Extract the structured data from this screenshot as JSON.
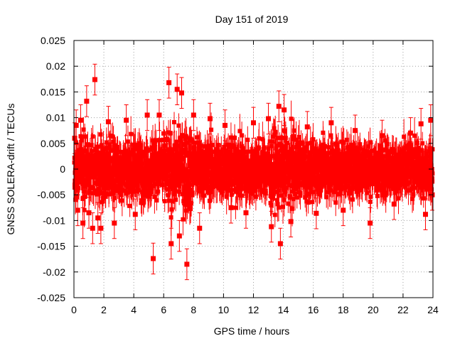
{
  "chart_data": {
    "type": "scatter",
    "title": "Day 151 of 2019",
    "xlabel": "GPS time / hours",
    "ylabel": "GNSS SOLERA-drift / TECUs",
    "xlim": [
      0,
      24
    ],
    "ylim": [
      -0.025,
      0.025
    ],
    "x_ticks": [
      "0",
      "2",
      "4",
      "6",
      "8",
      "10",
      "12",
      "14",
      "16",
      "18",
      "20",
      "22",
      "24"
    ],
    "y_ticks": [
      "-0.025",
      "-0.02",
      "-0.015",
      "-0.01",
      "-0.005",
      "0",
      "0.005",
      "0.01",
      "0.015",
      "0.02",
      "0.025"
    ],
    "grid": true,
    "legend": "none",
    "marker": "square",
    "error_bars": true,
    "color": "#ff0000",
    "points": [
      {
        "x": 0.05,
        "y": 0.006,
        "err": 0.003
      },
      {
        "x": 0.15,
        "y": 0.0085,
        "err": 0.003
      },
      {
        "x": 0.25,
        "y": -0.008,
        "err": 0.003
      },
      {
        "x": 0.45,
        "y": 0.0095,
        "err": 0.003
      },
      {
        "x": 0.6,
        "y": -0.0105,
        "err": 0.003
      },
      {
        "x": 0.85,
        "y": 0.0132,
        "err": 0.003
      },
      {
        "x": 1.0,
        "y": -0.0085,
        "err": 0.003
      },
      {
        "x": 1.25,
        "y": -0.0115,
        "err": 0.003
      },
      {
        "x": 1.4,
        "y": 0.0174,
        "err": 0.003
      },
      {
        "x": 1.6,
        "y": -0.0095,
        "err": 0.003
      },
      {
        "x": 1.8,
        "y": -0.0115,
        "err": 0.003
      },
      {
        "x": 2.3,
        "y": 0.0092,
        "err": 0.003
      },
      {
        "x": 2.7,
        "y": -0.0105,
        "err": 0.003
      },
      {
        "x": 3.5,
        "y": 0.0095,
        "err": 0.003
      },
      {
        "x": 4.1,
        "y": -0.0088,
        "err": 0.003
      },
      {
        "x": 4.9,
        "y": 0.0105,
        "err": 0.003
      },
      {
        "x": 5.3,
        "y": -0.0174,
        "err": 0.003
      },
      {
        "x": 5.7,
        "y": 0.0105,
        "err": 0.003
      },
      {
        "x": 6.35,
        "y": 0.0168,
        "err": 0.003
      },
      {
        "x": 6.5,
        "y": -0.0145,
        "err": 0.003
      },
      {
        "x": 6.9,
        "y": 0.0155,
        "err": 0.003
      },
      {
        "x": 7.05,
        "y": -0.013,
        "err": 0.003
      },
      {
        "x": 7.2,
        "y": 0.0148,
        "err": 0.003
      },
      {
        "x": 7.55,
        "y": -0.0185,
        "err": 0.003
      },
      {
        "x": 8.0,
        "y": 0.0105,
        "err": 0.003
      },
      {
        "x": 8.4,
        "y": -0.0115,
        "err": 0.003
      },
      {
        "x": 9.1,
        "y": 0.0098,
        "err": 0.003
      },
      {
        "x": 10.1,
        "y": 0.0085,
        "err": 0.003
      },
      {
        "x": 10.5,
        "y": -0.0075,
        "err": 0.003
      },
      {
        "x": 11.5,
        "y": -0.0085,
        "err": 0.003
      },
      {
        "x": 12.0,
        "y": 0.009,
        "err": 0.003
      },
      {
        "x": 13.0,
        "y": 0.0098,
        "err": 0.003
      },
      {
        "x": 13.2,
        "y": -0.0112,
        "err": 0.003
      },
      {
        "x": 13.7,
        "y": 0.0122,
        "err": 0.003
      },
      {
        "x": 13.8,
        "y": -0.0145,
        "err": 0.003
      },
      {
        "x": 14.05,
        "y": 0.0115,
        "err": 0.003
      },
      {
        "x": 14.5,
        "y": -0.0102,
        "err": 0.003
      },
      {
        "x": 15.6,
        "y": 0.0082,
        "err": 0.003
      },
      {
        "x": 16.2,
        "y": -0.0086,
        "err": 0.003
      },
      {
        "x": 17.2,
        "y": 0.009,
        "err": 0.003
      },
      {
        "x": 18.0,
        "y": -0.008,
        "err": 0.003
      },
      {
        "x": 18.8,
        "y": 0.0075,
        "err": 0.003
      },
      {
        "x": 19.8,
        "y": -0.0105,
        "err": 0.003
      },
      {
        "x": 20.6,
        "y": 0.0065,
        "err": 0.003
      },
      {
        "x": 21.4,
        "y": -0.0068,
        "err": 0.003
      },
      {
        "x": 22.5,
        "y": 0.007,
        "err": 0.003
      },
      {
        "x": 23.2,
        "y": 0.0088,
        "err": 0.003
      },
      {
        "x": 23.5,
        "y": -0.0088,
        "err": 0.003
      },
      {
        "x": 23.85,
        "y": 0.0095,
        "err": 0.003
      },
      {
        "x": 23.95,
        "y": -0.005,
        "err": 0.003
      }
    ]
  }
}
